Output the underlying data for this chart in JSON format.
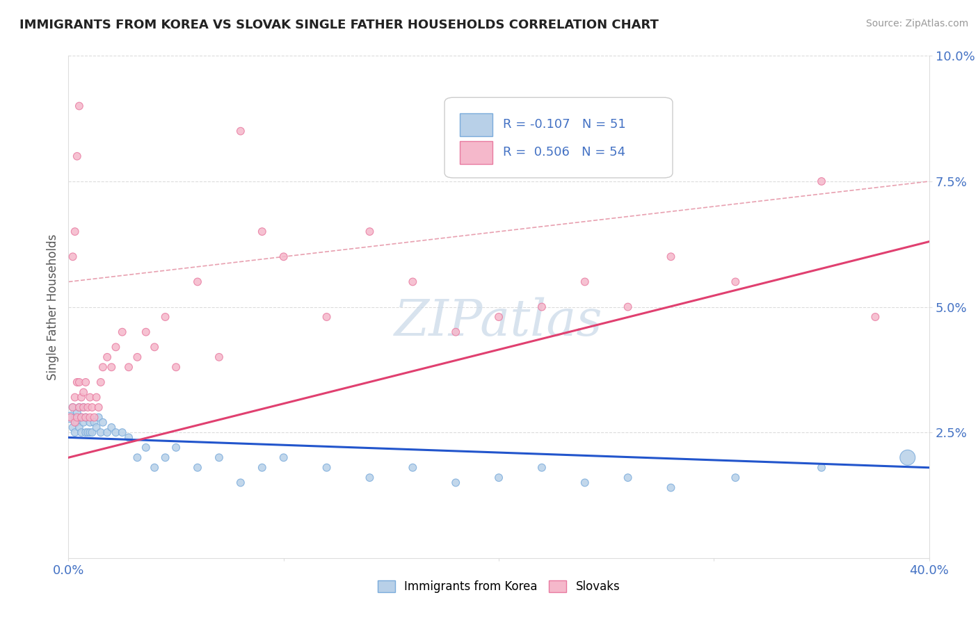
{
  "title": "IMMIGRANTS FROM KOREA VS SLOVAK SINGLE FATHER HOUSEHOLDS CORRELATION CHART",
  "source": "Source: ZipAtlas.com",
  "ylabel": "Single Father Households",
  "xlim": [
    0.0,
    0.4
  ],
  "ylim": [
    0.0,
    0.1
  ],
  "xticks": [
    0.0,
    0.1,
    0.2,
    0.3,
    0.4
  ],
  "yticks": [
    0.025,
    0.05,
    0.075,
    0.1
  ],
  "xticklabels": [
    "0.0%",
    "",
    "",
    "",
    "40.0%"
  ],
  "yticklabels": [
    "2.5%",
    "5.0%",
    "7.5%",
    "10.0%"
  ],
  "korea_R": -0.107,
  "korea_N": 51,
  "slovak_R": 0.506,
  "slovak_N": 54,
  "korea_color": "#b8d0e8",
  "slovak_color": "#f5b8cb",
  "korea_edge_color": "#7aabdb",
  "slovak_edge_color": "#e87aa0",
  "background_color": "#ffffff",
  "grid_color": "#cccccc",
  "axis_tick_color": "#4472c4",
  "korea_line_color": "#2255cc",
  "slovak_line_color": "#e04070",
  "dashed_line_color": "#e8a0b0",
  "watermark_color": "#c8d8e8",
  "korea_scatter_x": [
    0.001,
    0.002,
    0.002,
    0.003,
    0.003,
    0.004,
    0.004,
    0.005,
    0.005,
    0.006,
    0.006,
    0.007,
    0.007,
    0.008,
    0.008,
    0.009,
    0.01,
    0.01,
    0.011,
    0.012,
    0.013,
    0.014,
    0.015,
    0.016,
    0.018,
    0.02,
    0.022,
    0.025,
    0.028,
    0.032,
    0.036,
    0.04,
    0.045,
    0.05,
    0.06,
    0.07,
    0.08,
    0.09,
    0.1,
    0.12,
    0.14,
    0.16,
    0.18,
    0.2,
    0.22,
    0.24,
    0.26,
    0.28,
    0.31,
    0.35,
    0.39
  ],
  "korea_scatter_y": [
    0.028,
    0.026,
    0.03,
    0.025,
    0.028,
    0.027,
    0.029,
    0.026,
    0.03,
    0.025,
    0.028,
    0.027,
    0.03,
    0.025,
    0.028,
    0.025,
    0.027,
    0.025,
    0.025,
    0.027,
    0.026,
    0.028,
    0.025,
    0.027,
    0.025,
    0.026,
    0.025,
    0.025,
    0.024,
    0.02,
    0.022,
    0.018,
    0.02,
    0.022,
    0.018,
    0.02,
    0.015,
    0.018,
    0.02,
    0.018,
    0.016,
    0.018,
    0.015,
    0.016,
    0.018,
    0.015,
    0.016,
    0.014,
    0.016,
    0.018,
    0.02
  ],
  "korea_scatter_size": [
    120,
    60,
    60,
    60,
    60,
    60,
    60,
    60,
    60,
    60,
    60,
    60,
    60,
    60,
    60,
    60,
    60,
    60,
    60,
    60,
    60,
    60,
    60,
    60,
    60,
    60,
    60,
    60,
    60,
    60,
    60,
    60,
    60,
    60,
    60,
    60,
    60,
    60,
    60,
    60,
    60,
    60,
    60,
    60,
    60,
    60,
    60,
    60,
    60,
    60,
    250
  ],
  "slovak_scatter_x": [
    0.001,
    0.002,
    0.003,
    0.003,
    0.004,
    0.004,
    0.005,
    0.005,
    0.006,
    0.006,
    0.007,
    0.007,
    0.008,
    0.008,
    0.009,
    0.01,
    0.01,
    0.011,
    0.012,
    0.013,
    0.014,
    0.015,
    0.016,
    0.018,
    0.02,
    0.022,
    0.025,
    0.028,
    0.032,
    0.036,
    0.04,
    0.045,
    0.05,
    0.06,
    0.07,
    0.08,
    0.09,
    0.1,
    0.12,
    0.14,
    0.16,
    0.18,
    0.2,
    0.22,
    0.24,
    0.26,
    0.28,
    0.31,
    0.35,
    0.375,
    0.002,
    0.003,
    0.004,
    0.005
  ],
  "slovak_scatter_y": [
    0.028,
    0.03,
    0.027,
    0.032,
    0.028,
    0.035,
    0.03,
    0.035,
    0.028,
    0.032,
    0.03,
    0.033,
    0.028,
    0.035,
    0.03,
    0.032,
    0.028,
    0.03,
    0.028,
    0.032,
    0.03,
    0.035,
    0.038,
    0.04,
    0.038,
    0.042,
    0.045,
    0.038,
    0.04,
    0.045,
    0.042,
    0.048,
    0.038,
    0.055,
    0.04,
    0.085,
    0.065,
    0.06,
    0.048,
    0.065,
    0.055,
    0.045,
    0.048,
    0.05,
    0.055,
    0.05,
    0.06,
    0.055,
    0.075,
    0.048,
    0.06,
    0.065,
    0.08,
    0.09
  ],
  "slovak_scatter_size": [
    60,
    60,
    60,
    60,
    60,
    60,
    60,
    60,
    60,
    60,
    60,
    60,
    60,
    60,
    60,
    60,
    60,
    60,
    60,
    60,
    60,
    60,
    60,
    60,
    60,
    60,
    60,
    60,
    60,
    60,
    60,
    60,
    60,
    60,
    60,
    60,
    60,
    60,
    60,
    60,
    60,
    60,
    60,
    60,
    60,
    60,
    60,
    60,
    60,
    60,
    60,
    60,
    60,
    60
  ]
}
